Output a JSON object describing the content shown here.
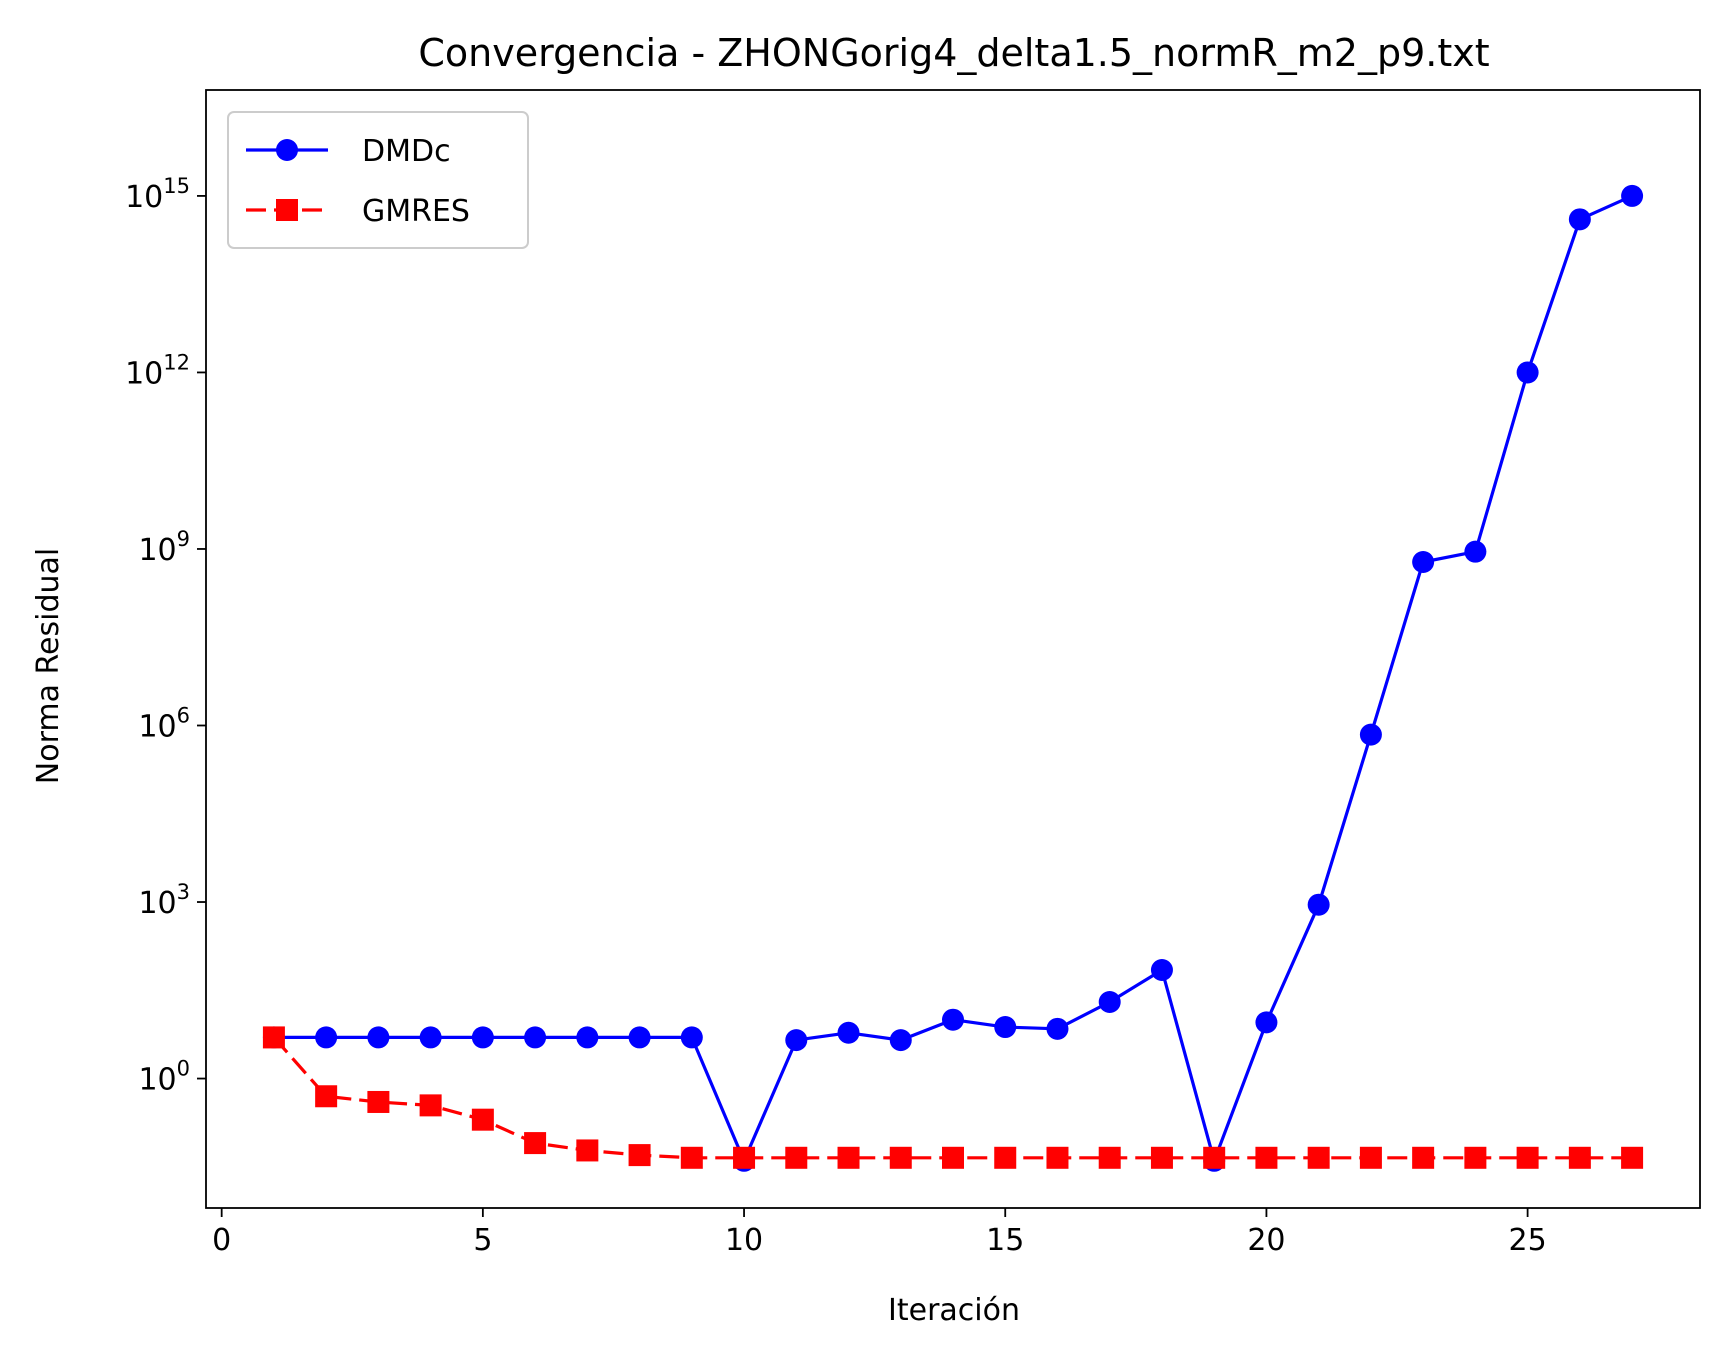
{
  "chart_data": {
    "type": "line",
    "title": "Convergencia - ZHONGorig4_delta1.5_normR_m2_p9.txt",
    "xlabel": "Iteración",
    "ylabel": "Norma Residual",
    "yscale": "log",
    "xlim": [
      -0.3,
      28.3
    ],
    "ylim_log10": [
      -2.2,
      16.8
    ],
    "x_ticks": [
      0,
      5,
      10,
      15,
      20,
      25
    ],
    "y_ticks": [
      {
        "base": "10",
        "exp": "0",
        "value": 1
      },
      {
        "base": "10",
        "exp": "3",
        "value": 1000
      },
      {
        "base": "10",
        "exp": "6",
        "value": 1000000
      },
      {
        "base": "10",
        "exp": "9",
        "value": 1000000000
      },
      {
        "base": "10",
        "exp": "12",
        "value": 1000000000000
      },
      {
        "base": "10",
        "exp": "15",
        "value": 1000000000000000
      }
    ],
    "legend_position": "upper-left",
    "grid": false,
    "series": [
      {
        "name": "DMDc",
        "color": "#0000ff",
        "linestyle": "solid",
        "marker": "circle",
        "x": [
          1,
          2,
          3,
          4,
          5,
          6,
          7,
          8,
          9,
          10,
          11,
          12,
          13,
          14,
          15,
          16,
          17,
          18,
          19,
          20,
          21,
          22,
          23,
          24,
          25,
          26,
          27
        ],
        "y": [
          5,
          5,
          5,
          5,
          5,
          5,
          5,
          5,
          5,
          0.04,
          4.5,
          6,
          4.5,
          10,
          7.5,
          7,
          20,
          70,
          0.04,
          9,
          900,
          700000,
          600000000,
          900000000,
          1000000000000,
          400000000000000,
          1000000000000000
        ]
      },
      {
        "name": "GMRES",
        "color": "#ff0000",
        "linestyle": "dashed",
        "marker": "square",
        "x": [
          1,
          2,
          3,
          4,
          5,
          6,
          7,
          8,
          9,
          10,
          11,
          12,
          13,
          14,
          15,
          16,
          17,
          18,
          19,
          20,
          21,
          22,
          23,
          24,
          25,
          26,
          27
        ],
        "y": [
          5,
          0.5,
          0.4,
          0.35,
          0.2,
          0.08,
          0.06,
          0.05,
          0.045,
          0.045,
          0.045,
          0.045,
          0.045,
          0.045,
          0.045,
          0.045,
          0.045,
          0.045,
          0.045,
          0.045,
          0.045,
          0.045,
          0.045,
          0.045,
          0.045,
          0.045,
          0.045
        ]
      }
    ]
  }
}
